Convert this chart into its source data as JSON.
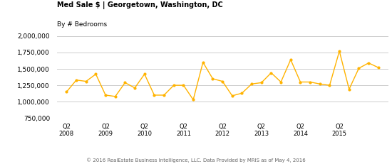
{
  "title_line1": "Med Sale $ | Georgetown, Washington, DC",
  "title_line2": "By # Bedrooms",
  "footer": "© 2016 RealEstate Business Intelligence, LLC. Data Provided by MRIS as of May 4, 2016",
  "line_color": "#FFB300",
  "marker_color": "#FFB300",
  "background_color": "#ffffff",
  "grid_color": "#cccccc",
  "ylim": [
    750000,
    2000000
  ],
  "yticks": [
    750000,
    1000000,
    1250000,
    1500000,
    1750000,
    2000000
  ],
  "x_labels": [
    "Q2\n2008",
    "Q2\n2009",
    "Q2\n2010",
    "Q2\n2011",
    "Q2\n2012",
    "Q2\n2013",
    "Q2\n2014",
    "Q2\n2015"
  ],
  "x_positions": [
    0,
    4,
    8,
    12,
    16,
    20,
    24,
    28
  ],
  "values": [
    1150000,
    1330000,
    1310000,
    1420000,
    1100000,
    1080000,
    1290000,
    1210000,
    1420000,
    1100000,
    1100000,
    1250000,
    1250000,
    1030000,
    1600000,
    1350000,
    1310000,
    1090000,
    1130000,
    1270000,
    1290000,
    1440000,
    1300000,
    1640000,
    1300000,
    1300000,
    1270000,
    1250000,
    1770000,
    1190000,
    1510000,
    1590000,
    1520000
  ],
  "x_values": [
    0,
    1,
    2,
    3,
    4,
    5,
    6,
    7,
    8,
    9,
    10,
    11,
    12,
    13,
    14,
    15,
    16,
    17,
    18,
    19,
    20,
    21,
    22,
    23,
    24,
    25,
    26,
    27,
    28,
    29,
    30,
    31,
    32
  ]
}
